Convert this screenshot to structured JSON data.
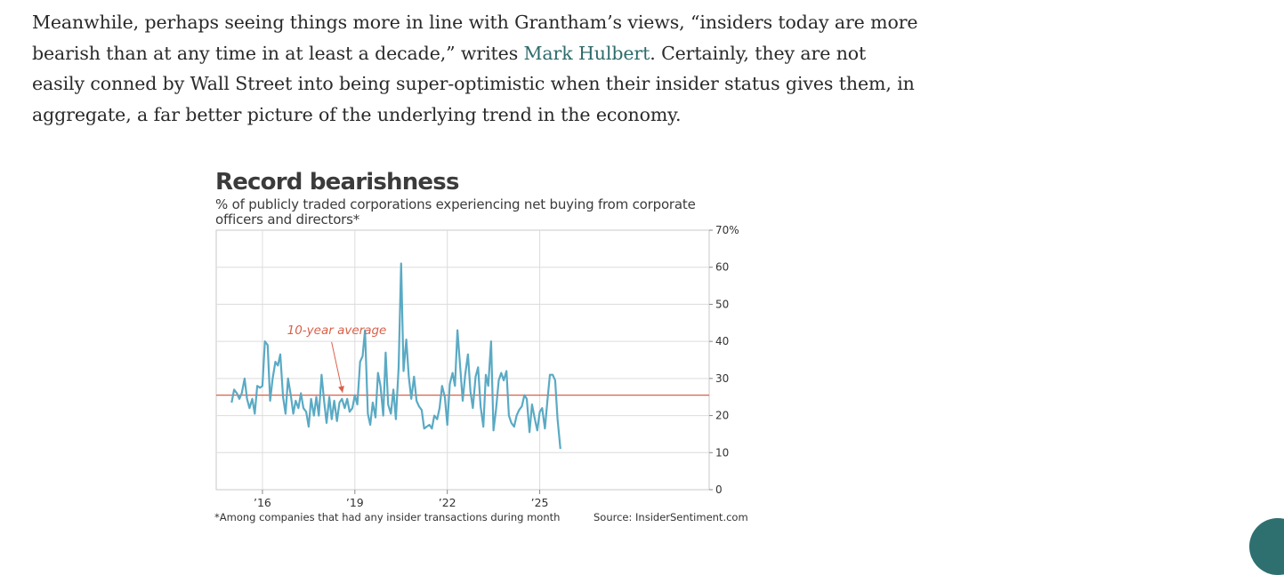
{
  "article": {
    "paragraph_before_link": "Meanwhile, perhaps seeing things more in line with Grantham’s views, “insiders today are more bearish than at any time in at least a decade,” writes ",
    "link_text": "Mark Hulbert",
    "paragraph_after_link": ". Certainly, they are not easily conned by Wall Street into being super-optimistic when their insider status gives them, in aggregate, a far better picture of the underlying trend in the economy."
  },
  "figure": {
    "footnote": "*Among companies that had any insider transactions during month",
    "source": "Source: InsiderSentiment.com"
  },
  "chart_data": {
    "type": "line",
    "title": "Record bearishness",
    "subtitle": "% of publicly traded corporations experiencing net buying from corporate officers and directors*",
    "xlabel": "",
    "ylabel": "",
    "ylim": [
      0,
      70
    ],
    "xlim": [
      2014.5,
      2030.5
    ],
    "grid": true,
    "y_ticks": [
      {
        "value": 0,
        "label": "0"
      },
      {
        "value": 10,
        "label": "10"
      },
      {
        "value": 20,
        "label": "20"
      },
      {
        "value": 30,
        "label": "30"
      },
      {
        "value": 40,
        "label": "40"
      },
      {
        "value": 50,
        "label": "50"
      },
      {
        "value": 60,
        "label": "60"
      },
      {
        "value": 70,
        "label": "70%"
      }
    ],
    "x_ticks": [
      {
        "value": 2016,
        "label": "’16"
      },
      {
        "value": 2019,
        "label": "’19"
      },
      {
        "value": 2022,
        "label": "’22"
      },
      {
        "value": 2025,
        "label": "’25"
      }
    ],
    "series_color": "#5aaac4",
    "average_color": "#d9604a",
    "average_value": 25.5,
    "annotation": {
      "text": "10-year average",
      "label_at": [
        2016.8,
        42
      ],
      "arrow_to": [
        2018.6,
        26.2
      ]
    },
    "series": [
      {
        "values": [
          [
            2015.0,
            23.5
          ],
          [
            2015.08,
            27.0
          ],
          [
            2015.17,
            26.0
          ],
          [
            2015.25,
            24.5
          ],
          [
            2015.33,
            26.0
          ],
          [
            2015.42,
            30.0
          ],
          [
            2015.5,
            24.5
          ],
          [
            2015.58,
            22.0
          ],
          [
            2015.67,
            24.5
          ],
          [
            2015.75,
            20.5
          ],
          [
            2015.83,
            28.0
          ],
          [
            2015.92,
            27.5
          ],
          [
            2016.0,
            28.0
          ],
          [
            2016.08,
            40.0
          ],
          [
            2016.17,
            39.0
          ],
          [
            2016.25,
            24.0
          ],
          [
            2016.33,
            30.0
          ],
          [
            2016.42,
            34.5
          ],
          [
            2016.5,
            33.5
          ],
          [
            2016.58,
            36.5
          ],
          [
            2016.67,
            25.0
          ],
          [
            2016.75,
            20.5
          ],
          [
            2016.83,
            30.0
          ],
          [
            2016.92,
            25.5
          ],
          [
            2017.0,
            20.5
          ],
          [
            2017.08,
            24.0
          ],
          [
            2017.17,
            22.0
          ],
          [
            2017.25,
            26.0
          ],
          [
            2017.33,
            22.0
          ],
          [
            2017.42,
            21.0
          ],
          [
            2017.5,
            17.0
          ],
          [
            2017.58,
            24.5
          ],
          [
            2017.67,
            20.0
          ],
          [
            2017.75,
            25.0
          ],
          [
            2017.83,
            20.0
          ],
          [
            2017.92,
            31.0
          ],
          [
            2018.0,
            24.0
          ],
          [
            2018.08,
            18.0
          ],
          [
            2018.17,
            25.0
          ],
          [
            2018.25,
            19.0
          ],
          [
            2018.33,
            24.0
          ],
          [
            2018.42,
            18.5
          ],
          [
            2018.5,
            23.5
          ],
          [
            2018.58,
            24.5
          ],
          [
            2018.67,
            22.0
          ],
          [
            2018.75,
            24.5
          ],
          [
            2018.83,
            21.0
          ],
          [
            2018.92,
            22.0
          ],
          [
            2019.0,
            25.5
          ],
          [
            2019.08,
            23.0
          ],
          [
            2019.17,
            34.5
          ],
          [
            2019.25,
            36.0
          ],
          [
            2019.33,
            43.0
          ],
          [
            2019.42,
            20.5
          ],
          [
            2019.5,
            17.5
          ],
          [
            2019.58,
            23.5
          ],
          [
            2019.67,
            19.5
          ],
          [
            2019.75,
            31.5
          ],
          [
            2019.83,
            28.0
          ],
          [
            2019.92,
            20.0
          ],
          [
            2020.0,
            37.0
          ],
          [
            2020.08,
            23.0
          ],
          [
            2020.17,
            20.5
          ],
          [
            2020.25,
            27.0
          ],
          [
            2020.33,
            19.0
          ],
          [
            2020.42,
            33.0
          ],
          [
            2020.5,
            61.0
          ],
          [
            2020.58,
            32.0
          ],
          [
            2020.67,
            40.5
          ],
          [
            2020.75,
            30.5
          ],
          [
            2020.83,
            24.5
          ],
          [
            2020.92,
            30.5
          ],
          [
            2021.0,
            24.0
          ],
          [
            2021.08,
            22.5
          ],
          [
            2021.17,
            21.5
          ],
          [
            2021.25,
            16.5
          ],
          [
            2021.33,
            17.0
          ],
          [
            2021.42,
            17.5
          ],
          [
            2021.5,
            16.5
          ],
          [
            2021.58,
            20.0
          ],
          [
            2021.67,
            19.0
          ],
          [
            2021.75,
            22.0
          ],
          [
            2021.83,
            28.0
          ],
          [
            2021.92,
            25.0
          ],
          [
            2022.0,
            17.5
          ],
          [
            2022.08,
            28.5
          ],
          [
            2022.17,
            31.5
          ],
          [
            2022.25,
            28.0
          ],
          [
            2022.33,
            43.0
          ],
          [
            2022.42,
            33.0
          ],
          [
            2022.5,
            24.0
          ],
          [
            2022.58,
            31.0
          ],
          [
            2022.67,
            36.5
          ],
          [
            2022.75,
            26.5
          ],
          [
            2022.83,
            22.0
          ],
          [
            2022.92,
            30.5
          ],
          [
            2023.0,
            33.0
          ],
          [
            2023.08,
            22.5
          ],
          [
            2023.17,
            17.0
          ],
          [
            2023.25,
            31.0
          ],
          [
            2023.33,
            28.0
          ],
          [
            2023.42,
            40.0
          ],
          [
            2023.5,
            16.0
          ],
          [
            2023.58,
            21.5
          ],
          [
            2023.67,
            29.5
          ],
          [
            2023.75,
            31.5
          ],
          [
            2023.83,
            29.5
          ],
          [
            2023.92,
            32.0
          ],
          [
            2024.0,
            20.0
          ],
          [
            2024.08,
            18.0
          ],
          [
            2024.17,
            17.0
          ],
          [
            2024.25,
            20.0
          ],
          [
            2024.33,
            21.5
          ],
          [
            2024.42,
            22.5
          ],
          [
            2024.5,
            25.5
          ],
          [
            2024.58,
            24.5
          ],
          [
            2024.67,
            15.5
          ],
          [
            2024.75,
            23.0
          ],
          [
            2024.83,
            19.5
          ],
          [
            2024.92,
            16.0
          ],
          [
            2025.0,
            21.0
          ],
          [
            2025.08,
            22.0
          ],
          [
            2025.17,
            16.5
          ],
          [
            2025.25,
            24.0
          ],
          [
            2025.33,
            31.0
          ],
          [
            2025.42,
            31.0
          ],
          [
            2025.5,
            29.5
          ],
          [
            2025.58,
            19.0
          ],
          [
            2025.67,
            11.0
          ]
        ]
      }
    ]
  }
}
